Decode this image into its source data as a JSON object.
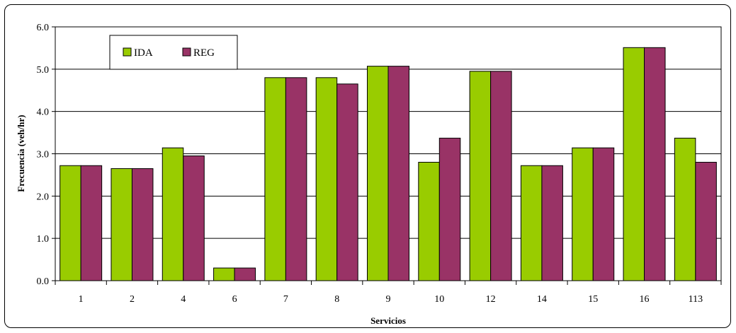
{
  "chart_data": {
    "type": "bar",
    "xlabel": "Servicios",
    "ylabel": "Frecuencia (veh/hr)",
    "categories": [
      "1",
      "2",
      "4",
      "6",
      "7",
      "8",
      "9",
      "10",
      "12",
      "14",
      "15",
      "16",
      "113"
    ],
    "series": [
      {
        "name": "IDA",
        "color": "#99CC00",
        "values": [
          2.72,
          2.65,
          3.14,
          0.3,
          4.8,
          4.8,
          5.07,
          2.8,
          4.95,
          2.72,
          3.14,
          5.51,
          3.37
        ]
      },
      {
        "name": "REG",
        "color": "#993366",
        "values": [
          2.72,
          2.65,
          2.95,
          0.3,
          4.8,
          4.65,
          5.07,
          3.37,
          4.95,
          2.72,
          3.14,
          5.51,
          2.8
        ]
      }
    ],
    "ylim": [
      0,
      6
    ],
    "yticks": [
      "0.0",
      "1.0",
      "2.0",
      "3.0",
      "4.0",
      "5.0",
      "6.0"
    ],
    "grid": true,
    "legend": "top-left"
  }
}
